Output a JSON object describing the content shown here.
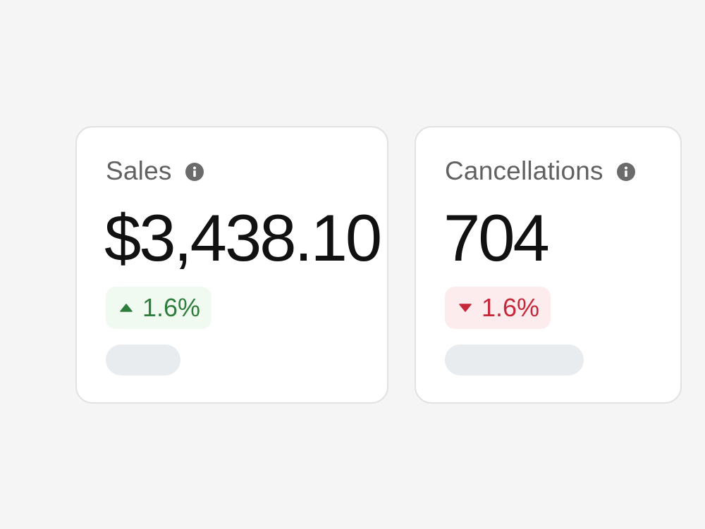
{
  "cards": [
    {
      "label": "Sales",
      "value": "$3,438.10",
      "change": "1.6%",
      "trend": "up",
      "info_icon": "info-icon",
      "trend_icon": "triangle-up-icon",
      "trend_color": "#2e7d3c"
    },
    {
      "label": "Cancellations",
      "value": "704",
      "change": "1.6%",
      "trend": "down",
      "info_icon": "info-icon",
      "trend_icon": "triangle-down-icon",
      "trend_color": "#c6283a"
    }
  ]
}
